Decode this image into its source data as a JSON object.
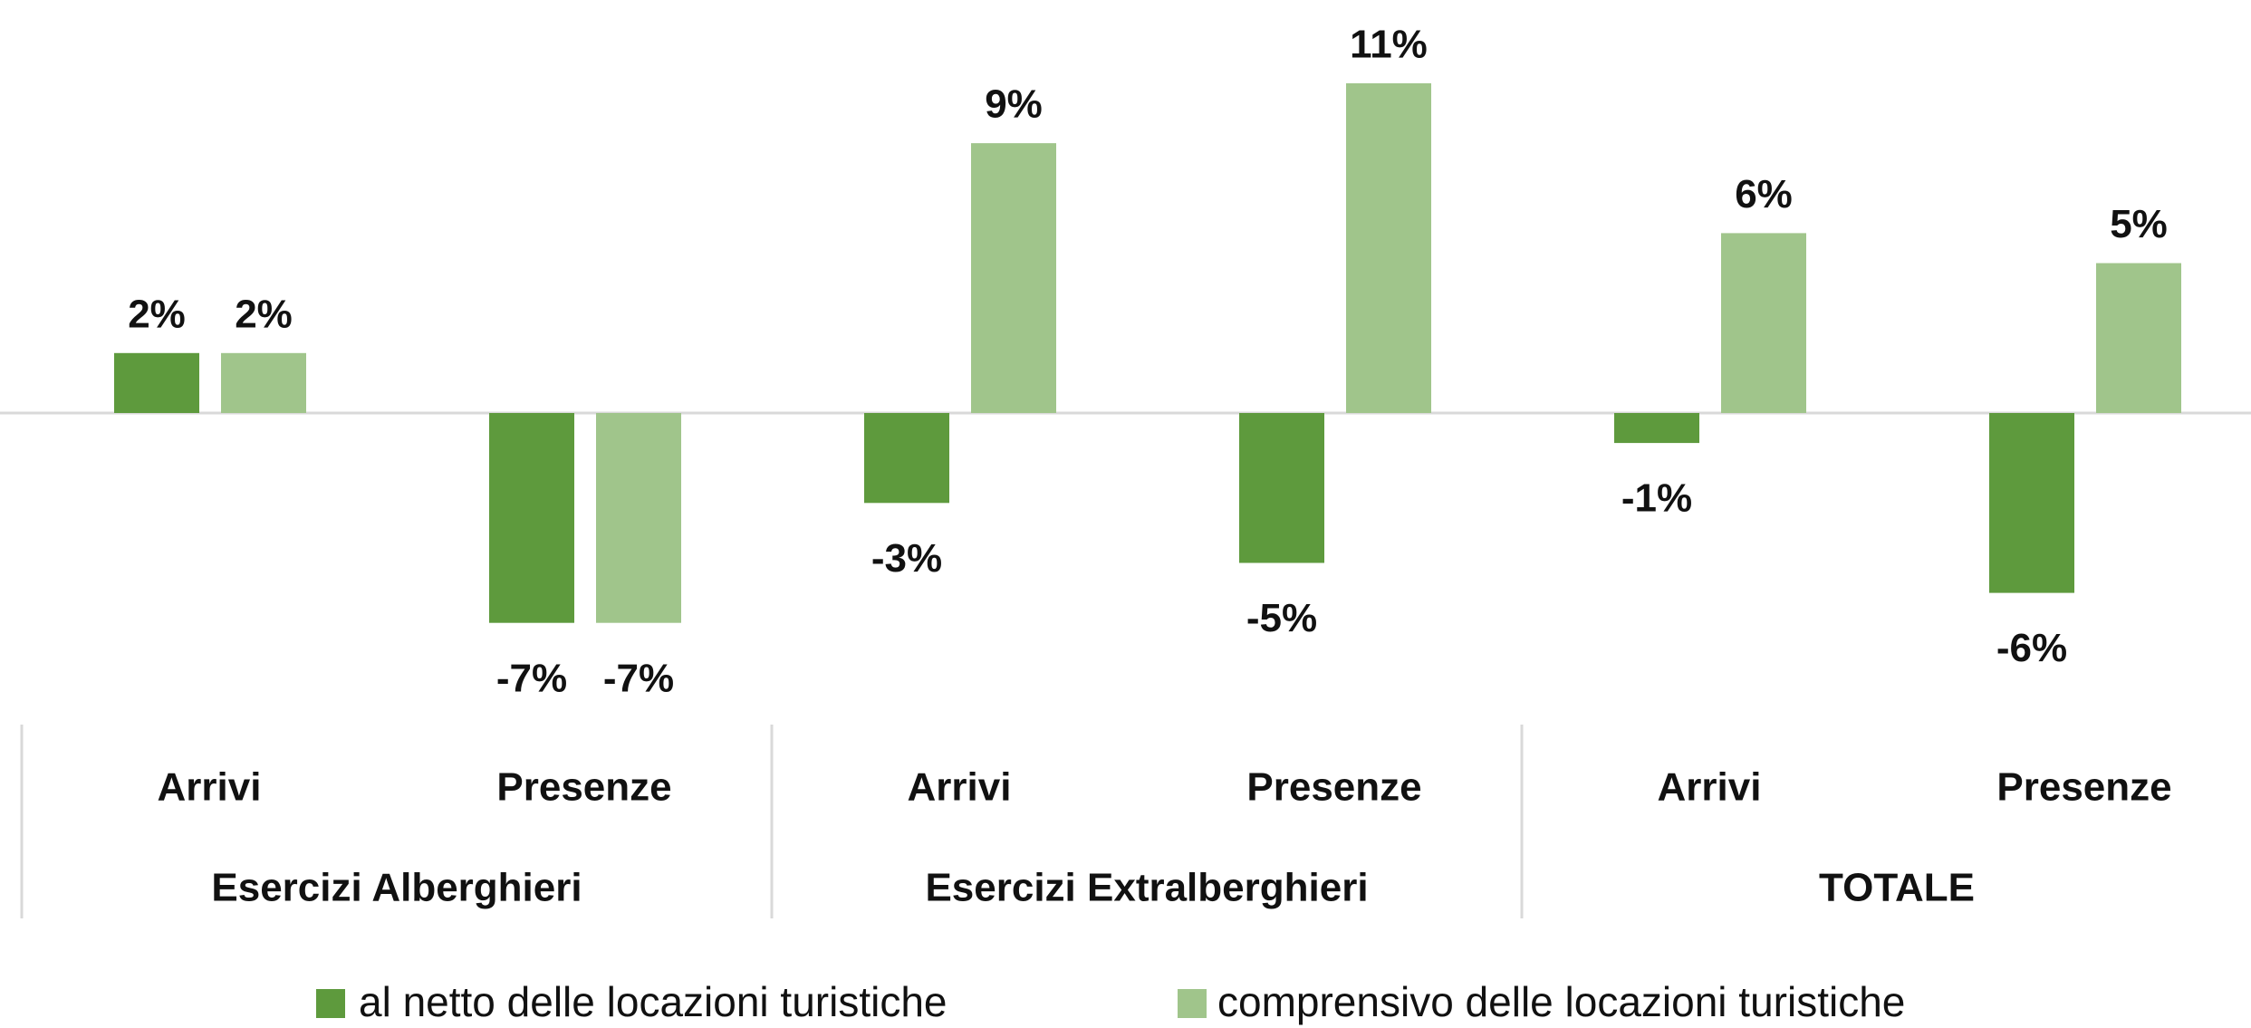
{
  "chart_data": {
    "type": "bar",
    "categories": [
      "Arrivi",
      "Presenze",
      "Arrivi",
      "Presenze",
      "Arrivi",
      "Presenze"
    ],
    "groups": [
      "Esercizi Alberghieri",
      "Esercizi Extralberghieri",
      "TOTALE"
    ],
    "series": [
      {
        "name": "al netto delle locazioni turistiche",
        "color": "#5e9a3d",
        "values": [
          2,
          -7,
          -3,
          -5,
          -1,
          -6
        ],
        "value_labels": [
          "2%",
          "-7%",
          "-3%",
          "-5%",
          "-1%",
          "-6%"
        ]
      },
      {
        "name": "comprensivo delle locazioni turistiche",
        "color": "#a0c58b",
        "values": [
          2,
          -7,
          9,
          11,
          6,
          5
        ],
        "value_labels": [
          "2%",
          "-7%",
          "9%",
          "11%",
          "6%",
          "5%"
        ]
      }
    ],
    "legend": "bottom"
  }
}
